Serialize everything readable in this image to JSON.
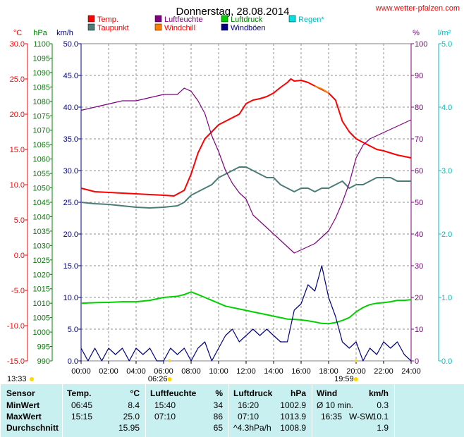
{
  "title": "Donnerstag, 28.08.2014",
  "site": "www.wetter-pfalzen.com",
  "legend": [
    {
      "label": "Temp.",
      "color": "#ff0000",
      "label_color": "#ff0000"
    },
    {
      "label": "Taupunkt",
      "color": "#4c7c78",
      "label_color": "#ff0000"
    },
    {
      "label": "Luftfeuchte",
      "color": "#800080",
      "label_color": "#800080"
    },
    {
      "label": "Windchill",
      "color": "#ff8000",
      "label_color": "#ff0000"
    },
    {
      "label": "Luftdruck",
      "color": "#00d000",
      "label_color": "#008000"
    },
    {
      "label": "Windböen",
      "color": "#000080",
      "label_color": "#000080"
    },
    {
      "label": "Regen*",
      "color": "#00e0e0",
      "label_color": "#00c0c0"
    }
  ],
  "axis_units": {
    "temp": "°C",
    "pressure": "hPa",
    "wind": "km/h",
    "humidity": "%",
    "rain": "l/m²"
  },
  "axis_colors": {
    "temp": "#ff0000",
    "pressure": "#008000",
    "wind": "#000080",
    "humidity": "#800080",
    "rain": "#00c0c0"
  },
  "sun": {
    "sunrise": "06:26",
    "sunset": "19:59",
    "left_time": "13:33"
  },
  "chart_data": {
    "type": "line",
    "title": "Donnerstag, 28.08.2014",
    "x_ticks": [
      "00:00",
      "02:00",
      "04:00",
      "06:00",
      "08:00",
      "10:00",
      "12:00",
      "14:00",
      "16:00",
      "18:00",
      "20:00",
      "22:00",
      "24:00"
    ],
    "x_range_hours": [
      0,
      24
    ],
    "grid": true,
    "legend_position": "top",
    "axes": {
      "temp_c": {
        "range": [
          -15,
          30
        ],
        "ticks": [
          "30.0",
          "25.0",
          "20.0",
          "15.0",
          "10.0",
          "5.0",
          "0.0",
          "-5.0",
          "-10.0",
          "-15.0"
        ]
      },
      "pressure_hpa": {
        "range": [
          990,
          1100
        ],
        "ticks": [
          "1100",
          "1095",
          "1090",
          "1085",
          "1080",
          "1075",
          "1070",
          "1065",
          "1060",
          "1055",
          "1050",
          "1045",
          "1040",
          "1035",
          "1030",
          "1025",
          "1020",
          "1015",
          "1010",
          "1005",
          "1000",
          "995",
          "990"
        ]
      },
      "wind_kmh": {
        "range": [
          0,
          50
        ],
        "ticks": [
          "50.0",
          "45.0",
          "40.0",
          "35.0",
          "30.0",
          "25.0",
          "20.0",
          "15.0",
          "10.0",
          "5.0",
          "0.0"
        ]
      },
      "humidity_pct": {
        "range": [
          0,
          100
        ],
        "ticks": [
          "100",
          "90",
          "80",
          "70",
          "60",
          "50",
          "40",
          "30",
          "20",
          "10",
          "0"
        ]
      },
      "rain_lm2": {
        "range": [
          0,
          5
        ],
        "ticks": [
          "5.0",
          "4.0",
          "3.0",
          "2.0",
          "1.0",
          "0.0"
        ]
      }
    },
    "series": [
      {
        "name": "Temp.",
        "axis": "temp_c",
        "color": "#ff0000",
        "x": [
          0,
          1,
          2,
          3,
          4,
          5,
          6,
          6.75,
          7.5,
          8,
          8.5,
          9,
          9.5,
          10,
          10.5,
          11,
          11.5,
          12,
          12.5,
          13,
          13.5,
          14,
          14.5,
          15,
          15.25,
          15.5,
          16,
          16.5,
          17,
          17.5,
          18,
          18.5,
          19,
          19.5,
          20,
          20.5,
          21,
          21.5,
          22,
          22.5,
          23,
          23.5,
          24
        ],
        "y": [
          9.5,
          9.0,
          8.9,
          8.8,
          8.7,
          8.6,
          8.5,
          8.4,
          9.2,
          11.5,
          14.5,
          16.5,
          17.5,
          18.5,
          19.0,
          19.5,
          20.0,
          21.5,
          22.0,
          22.2,
          22.5,
          23.0,
          23.8,
          24.5,
          25.0,
          24.7,
          24.8,
          24.5,
          24.0,
          23.5,
          23.0,
          22.0,
          19.0,
          17.5,
          16.5,
          16.0,
          15.5,
          15.0,
          14.8,
          14.5,
          14.2,
          14.0,
          13.8
        ]
      },
      {
        "name": "Taupunkt",
        "axis": "temp_c",
        "color": "#4c7c78",
        "x": [
          0,
          1,
          2,
          3,
          4,
          5,
          6,
          7,
          7.5,
          8,
          8.5,
          9,
          9.5,
          10,
          10.5,
          11,
          11.5,
          12,
          12.5,
          13,
          13.5,
          14,
          14.5,
          15,
          15.5,
          16,
          16.5,
          17,
          17.5,
          18,
          18.5,
          19,
          19.5,
          20,
          20.5,
          21,
          21.5,
          22,
          22.5,
          23,
          23.5,
          24
        ],
        "y": [
          7.5,
          7.3,
          7.2,
          7.0,
          6.8,
          6.7,
          6.8,
          7.0,
          7.5,
          8.5,
          9.0,
          9.5,
          10.0,
          11.0,
          11.5,
          12.0,
          12.5,
          12.5,
          12.0,
          11.5,
          11.0,
          11.0,
          10.0,
          9.5,
          9.0,
          9.5,
          9.5,
          9.0,
          9.5,
          9.5,
          10.0,
          10.5,
          9.5,
          10.0,
          10.0,
          10.5,
          11.0,
          11.0,
          11.0,
          10.5,
          10.5,
          10.5
        ]
      },
      {
        "name": "Windchill",
        "axis": "temp_c",
        "color": "#ff8000",
        "x": [
          17,
          17.5,
          18
        ],
        "y": [
          24.0,
          23.6,
          23.0
        ]
      },
      {
        "name": "Luftfeuchte",
        "axis": "humidity_pct",
        "color": "#800080",
        "x": [
          0,
          1,
          2,
          3,
          4,
          5,
          6,
          7,
          7.5,
          8,
          8.5,
          9,
          9.5,
          10,
          10.5,
          11,
          11.5,
          12,
          12.5,
          13,
          13.5,
          14,
          14.5,
          15,
          15.5,
          16,
          16.5,
          17,
          17.5,
          18,
          18.5,
          19,
          19.5,
          20,
          20.5,
          21,
          21.5,
          22,
          22.5,
          23,
          23.5,
          24
        ],
        "y": [
          79,
          80,
          81,
          82,
          82,
          83,
          84,
          84,
          86,
          85,
          82,
          78,
          71,
          66,
          60,
          56,
          53,
          51,
          46,
          44,
          42,
          40,
          38,
          36,
          34,
          35,
          36,
          37,
          39,
          41,
          45,
          50,
          56,
          64,
          68,
          70,
          71,
          72,
          73,
          74,
          75,
          76
        ]
      },
      {
        "name": "Luftdruck",
        "axis": "pressure_hpa",
        "color": "#00d000",
        "x": [
          0,
          1,
          2,
          3,
          4,
          5,
          6,
          7,
          7.5,
          8,
          8.5,
          9,
          9.5,
          10,
          10.5,
          11,
          11.5,
          12,
          12.5,
          13,
          13.5,
          14,
          14.5,
          15,
          15.5,
          16,
          16.5,
          17,
          17.5,
          18,
          18.5,
          19,
          19.5,
          20,
          20.5,
          21,
          21.5,
          22,
          22.5,
          23,
          23.5,
          24
        ],
        "y": [
          1010,
          1010.2,
          1010.3,
          1010.5,
          1010.5,
          1011,
          1012,
          1012.4,
          1013,
          1013.9,
          1013,
          1012,
          1011,
          1010,
          1009,
          1008.5,
          1008,
          1007.5,
          1007,
          1006.5,
          1006,
          1005.5,
          1005,
          1004.5,
          1004.4,
          1004.2,
          1003.9,
          1003.5,
          1003,
          1002.9,
          1003.3,
          1004,
          1005,
          1007,
          1008.5,
          1009.5,
          1010,
          1010.2,
          1010.5,
          1011,
          1011,
          1011.2
        ]
      },
      {
        "name": "Windböen",
        "axis": "wind_kmh",
        "color": "#000080",
        "x": [
          0,
          0.5,
          1,
          1.5,
          2,
          2.5,
          3,
          3.5,
          4,
          4.5,
          5,
          5.5,
          6,
          6.5,
          7,
          7.5,
          8,
          8.5,
          9,
          9.5,
          10,
          10.5,
          11,
          11.5,
          12,
          12.5,
          13,
          13.5,
          14,
          14.5,
          15,
          15.5,
          16,
          16.5,
          17,
          17.5,
          18,
          18.5,
          19,
          19.5,
          20,
          20.5,
          21,
          21.5,
          22,
          22.5,
          23,
          23.5,
          24
        ],
        "y": [
          2,
          0,
          2,
          0,
          2,
          1,
          2,
          0,
          2,
          1,
          2,
          0,
          0,
          2,
          1,
          2,
          0,
          2,
          3,
          0,
          2,
          4,
          5,
          3,
          4,
          5,
          4,
          5,
          4,
          3,
          3,
          8,
          9,
          12,
          11,
          15,
          10,
          7,
          3,
          2,
          3,
          0,
          2,
          1,
          3,
          2,
          3,
          1,
          0
        ]
      }
    ]
  },
  "table": {
    "headers": [
      {
        "label": "Sensor"
      },
      {
        "label": "Temp.",
        "unit": "°C"
      },
      {
        "label": "Luftfeuchte",
        "unit": "%"
      },
      {
        "label": "Luftdruck",
        "unit": "hPa"
      },
      {
        "label": "Wind",
        "unit": "km/h"
      }
    ],
    "rows": [
      {
        "label": "MinWert",
        "temp_time": "06:45",
        "temp_val": "8.4",
        "hum_time": "15:40",
        "hum_val": "34",
        "pres_time": "16:20",
        "pres_val": "1002.9",
        "wind_time": "Ø 10 min.",
        "wind_val": "0.3"
      },
      {
        "label": "MaxWert",
        "temp_time": "15:15",
        "temp_val": "25.0",
        "hum_time": "07:10",
        "hum_val": "86",
        "pres_time": "07:10",
        "pres_val": "1013.9",
        "wind_time": "16:35   W-SW",
        "wind_val": "10.1"
      },
      {
        "label": "Durchschnitt",
        "temp_time": "",
        "temp_val": "15.95",
        "hum_time": "",
        "hum_val": "65",
        "pres_time": "^4.3hPa/h",
        "pres_val": "1008.9",
        "wind_time": "",
        "wind_val": "1.9"
      }
    ]
  }
}
